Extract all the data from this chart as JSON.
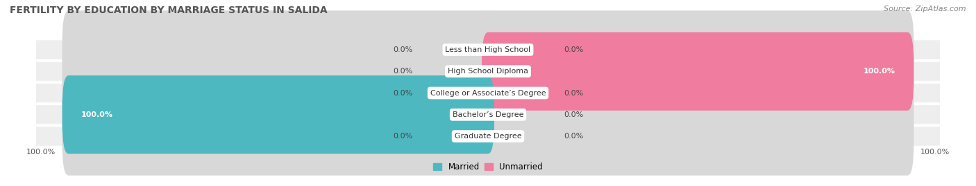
{
  "title": "FERTILITY BY EDUCATION BY MARRIAGE STATUS IN SALIDA",
  "source": "Source: ZipAtlas.com",
  "categories": [
    "Less than High School",
    "High School Diploma",
    "College or Associate’s Degree",
    "Bachelor’s Degree",
    "Graduate Degree"
  ],
  "married": [
    0.0,
    0.0,
    0.0,
    100.0,
    0.0
  ],
  "unmarried": [
    0.0,
    100.0,
    0.0,
    0.0,
    0.0
  ],
  "married_color": "#4db8c0",
  "unmarried_color": "#f07ca0",
  "row_bg_color": "#eeeeee",
  "bar_bg_color": "#d8d8d8",
  "title_fontsize": 10,
  "label_fontsize": 8,
  "tick_fontsize": 8,
  "source_fontsize": 8,
  "max_val": 100.0,
  "figsize": [
    14.06,
    2.69
  ],
  "dpi": 100
}
